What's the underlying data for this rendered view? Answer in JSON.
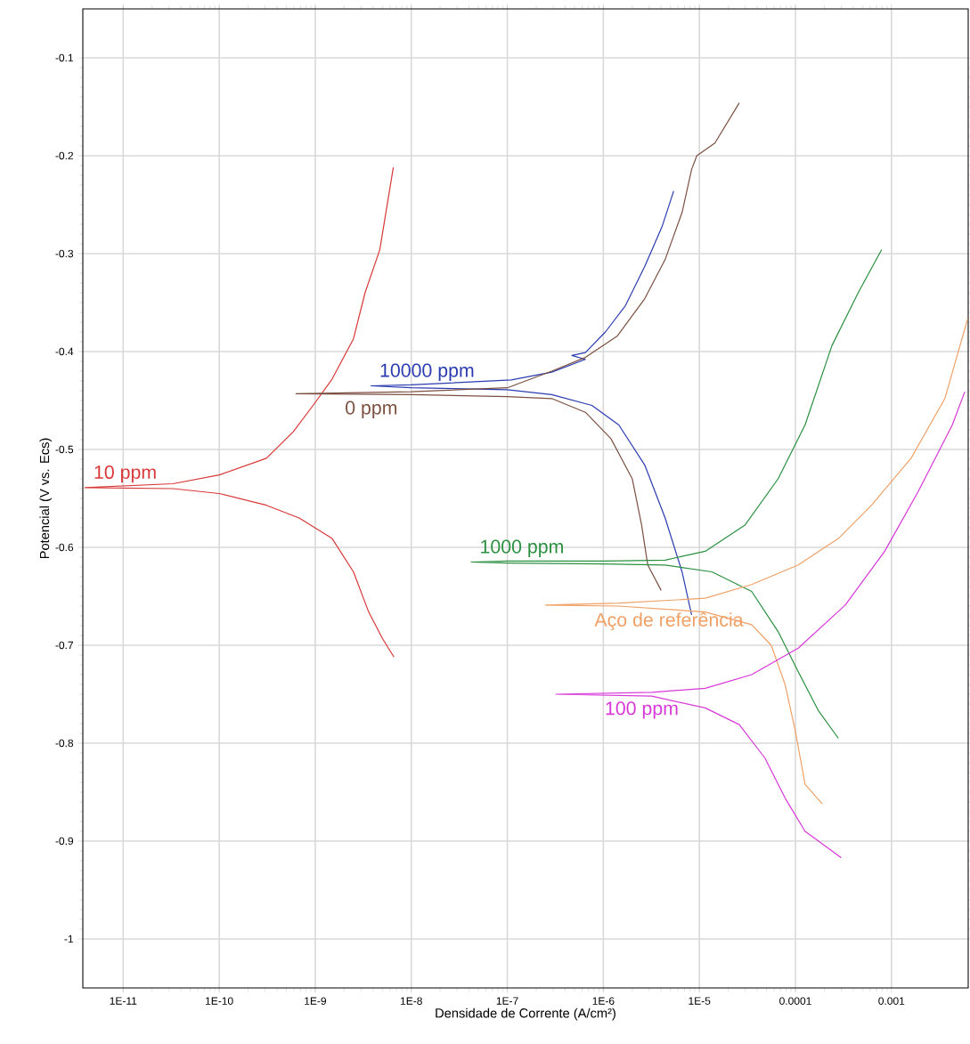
{
  "chart_data": {
    "type": "line",
    "xlabel": "Densidade de Corrente (A/cm²)",
    "ylabel": "Potencial (V vs. Ecs)",
    "log": "x",
    "grid": true,
    "line_style": "solid",
    "marker": "none",
    "xlim": [
      3.8e-12,
      0.0063
    ],
    "ylim": [
      -1.05,
      -0.05
    ],
    "xticks": [
      {
        "value": 1e-11,
        "label": "1E-11"
      },
      {
        "value": 1e-10,
        "label": "1E-10"
      },
      {
        "value": 1e-09,
        "label": "1E-9"
      },
      {
        "value": 1e-08,
        "label": "1E-8"
      },
      {
        "value": 1e-07,
        "label": "1E-7"
      },
      {
        "value": 1e-06,
        "label": "1E-6"
      },
      {
        "value": 1e-05,
        "label": "1E-5"
      },
      {
        "value": 0.0001,
        "label": "0.0001"
      },
      {
        "value": 0.001,
        "label": "0.001"
      }
    ],
    "yticks": [
      -1,
      -0.9,
      -0.8,
      -0.7,
      -0.6,
      -0.5,
      -0.4,
      -0.3,
      -0.2,
      -0.1
    ],
    "series": [
      {
        "name": "10 ppm",
        "color": "#d83838",
        "x": [
          6.5e-09,
          4.7e-09,
          3.3e-09,
          2.5e-09,
          1.5e-09,
          9.5e-10,
          5.9e-10,
          3.1e-10,
          1e-10,
          3.3e-11,
          4e-12,
          3.3e-11,
          1e-10,
          3.1e-10,
          6.8e-10,
          1.5e-09,
          2.5e-09,
          3.6e-09,
          5e-09,
          6.6e-09
        ],
        "values": [
          -0.212,
          -0.296,
          -0.34,
          -0.387,
          -0.428,
          -0.455,
          -0.482,
          -0.509,
          -0.526,
          -0.535,
          -0.539,
          -0.54,
          -0.545,
          -0.557,
          -0.57,
          -0.591,
          -0.625,
          -0.666,
          -0.693,
          -0.712
        ]
      },
      {
        "name": "10000 ppm",
        "color": "#2a3cb0",
        "x": [
          5.4e-06,
          4.1e-06,
          2.7e-06,
          1.7e-06,
          1.05e-06,
          6.5e-07,
          4.7e-07,
          6.5e-07,
          2.9e-07,
          1.1e-07,
          1e-08,
          3.8e-09,
          1e-08,
          1e-07,
          2.9e-07,
          7.6e-07,
          1.45e-06,
          2.7e-06,
          4.4e-06,
          6.6e-06,
          8.3e-06
        ],
        "values": [
          -0.236,
          -0.272,
          -0.313,
          -0.353,
          -0.38,
          -0.401,
          -0.404,
          -0.408,
          -0.421,
          -0.429,
          -0.434,
          -0.435,
          -0.437,
          -0.439,
          -0.444,
          -0.455,
          -0.475,
          -0.516,
          -0.57,
          -0.625,
          -0.669
        ]
      },
      {
        "name": "0 ppm",
        "color": "#7b5040",
        "x": [
          2.6e-05,
          1.45e-05,
          9.4e-06,
          8.3e-06,
          6.6e-06,
          4.4e-06,
          2.7e-06,
          1.4e-06,
          6.5e-07,
          2.9e-07,
          1e-07,
          1e-08,
          6.3e-10,
          1e-08,
          1e-07,
          2.9e-07,
          6.5e-07,
          1.2e-06,
          2e-06,
          2.5e-06,
          2.9e-06,
          4e-06
        ],
        "values": [
          -0.146,
          -0.187,
          -0.2,
          -0.214,
          -0.258,
          -0.306,
          -0.346,
          -0.384,
          -0.406,
          -0.42,
          -0.437,
          -0.441,
          -0.443,
          -0.444,
          -0.446,
          -0.448,
          -0.462,
          -0.489,
          -0.53,
          -0.577,
          -0.618,
          -0.644
        ]
      },
      {
        "name": "1000 ppm",
        "color": "#2a9040",
        "x": [
          0.00079,
          0.00045,
          0.00024,
          0.000126,
          6.6e-05,
          3e-05,
          1.15e-05,
          4.4e-06,
          1.05e-06,
          1e-07,
          4.2e-08,
          1e-07,
          1e-06,
          4.4e-06,
          1.35e-05,
          3.5e-05,
          6.6e-05,
          0.000107,
          0.000174,
          0.00028
        ],
        "values": [
          -0.296,
          -0.34,
          -0.394,
          -0.475,
          -0.53,
          -0.577,
          -0.604,
          -0.613,
          -0.614,
          -0.614,
          -0.615,
          -0.616,
          -0.617,
          -0.618,
          -0.625,
          -0.645,
          -0.686,
          -0.727,
          -0.767,
          -0.795
        ]
      },
      {
        "name": "Aço de referência",
        "color": "#f0a064",
        "x": [
          0.0062,
          0.0036,
          0.0016,
          0.00062,
          0.00028,
          0.000107,
          3.5e-05,
          1.15e-05,
          1.45e-06,
          2.5e-07,
          1.45e-06,
          1.15e-05,
          3.5e-05,
          5.6e-05,
          7.8e-05,
          0.0001,
          0.000126,
          0.00019
        ],
        "values": [
          -0.367,
          -0.448,
          -0.509,
          -0.557,
          -0.591,
          -0.618,
          -0.638,
          -0.652,
          -0.657,
          -0.659,
          -0.66,
          -0.666,
          -0.679,
          -0.7,
          -0.74,
          -0.788,
          -0.842,
          -0.862
        ]
      },
      {
        "name": "100 ppm",
        "color": "#d838d8",
        "x": [
          0.0058,
          0.0043,
          0.0019,
          0.00085,
          0.00033,
          0.000107,
          3.5e-05,
          1.15e-05,
          3.2e-06,
          3.2e-07,
          3.2e-06,
          1.15e-05,
          2.6e-05,
          4.8e-05,
          7.8e-05,
          0.000126,
          0.0003
        ],
        "values": [
          -0.441,
          -0.475,
          -0.543,
          -0.604,
          -0.659,
          -0.703,
          -0.73,
          -0.744,
          -0.748,
          -0.75,
          -0.752,
          -0.764,
          -0.781,
          -0.815,
          -0.856,
          -0.89,
          -0.917
        ]
      }
    ]
  }
}
